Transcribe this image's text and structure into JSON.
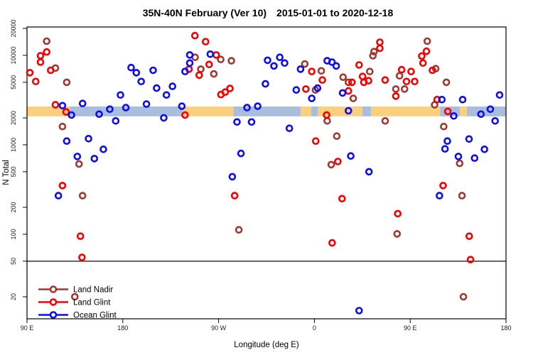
{
  "chart_data": {
    "type": "scatter",
    "title_left": "35N-40N February (Ver 10)",
    "title_right": "2015-01-01 to 2020-12-18",
    "xlabel": "Longitude (deg E)",
    "ylabel": "N Total",
    "x_axis": {
      "note": "axis position measured in degrees eastward from 90E; axis wraps 90E-180-90W-0-90E-180",
      "range": [
        0,
        450
      ],
      "ticks": [
        {
          "pos": 0,
          "label": "90 E"
        },
        {
          "pos": 90,
          "label": "180"
        },
        {
          "pos": 180,
          "label": "90 W"
        },
        {
          "pos": 270,
          "label": "0"
        },
        {
          "pos": 360,
          "label": "90 E"
        },
        {
          "pos": 450,
          "label": "180"
        }
      ]
    },
    "y_axis": {
      "scale": "log",
      "ticks": [
        20000,
        10000,
        5000,
        2000,
        1000,
        500,
        200,
        100,
        50,
        20
      ]
    },
    "threshold_line_value": 50,
    "coast_band": {
      "description": "land/ocean strip along longitude",
      "value_range": [
        2080,
        2680
      ],
      "land_color": "#FAD07E",
      "ocean_color": "#A9BEDC",
      "land_segments": [
        [
          0,
          40
        ],
        [
          146,
          194
        ],
        [
          257,
          267
        ],
        [
          273.3,
          315
        ],
        [
          323.3,
          388
        ],
        [
          406.7,
          413.3
        ]
      ],
      "ocean_segments": [
        [
          40,
          146
        ],
        [
          194,
          257
        ],
        [
          267,
          273.3
        ],
        [
          315,
          323.3
        ],
        [
          388,
          406.7
        ],
        [
          413.3,
          450
        ]
      ]
    },
    "series": [
      {
        "name": "Land Nadir",
        "color": "#A03A30",
        "points": [
          [
            18.5,
            14400
          ],
          [
            26.7,
            7200
          ],
          [
            37.3,
            5000
          ],
          [
            48.9,
            610
          ],
          [
            52.2,
            270
          ],
          [
            33.3,
            1600
          ],
          [
            158,
            9500
          ],
          [
            182,
            9000
          ],
          [
            163.3,
            7000
          ],
          [
            175.5,
            6200
          ],
          [
            192,
            8700
          ],
          [
            261,
            8000
          ],
          [
            276.5,
            6700
          ],
          [
            271,
            4100
          ],
          [
            297,
            5700
          ],
          [
            302,
            5000
          ],
          [
            306.5,
            3300
          ],
          [
            322,
            6600
          ],
          [
            325,
            9900
          ],
          [
            326,
            11000
          ],
          [
            346.5,
            4200
          ],
          [
            350,
            5900
          ],
          [
            354.7,
            4200
          ],
          [
            376,
            14400
          ],
          [
            384,
            7100
          ],
          [
            394,
            5000
          ],
          [
            44.9,
            20
          ],
          [
            199,
            112
          ],
          [
            347.7,
            101
          ],
          [
            410,
            20
          ],
          [
            383,
            2800
          ],
          [
            282,
            1850
          ],
          [
            336.5,
            1850
          ],
          [
            391.5,
            1600
          ],
          [
            291,
            1250
          ],
          [
            285.8,
            600
          ],
          [
            406.5,
            620
          ],
          [
            408.7,
            270
          ]
        ]
      },
      {
        "name": "Land Glint",
        "color": "#F80000",
        "points": [
          [
            12.7,
            9900
          ],
          [
            18.5,
            10900
          ],
          [
            12.7,
            8400
          ],
          [
            2.7,
            6400
          ],
          [
            22.2,
            6800
          ],
          [
            8.2,
            5100
          ],
          [
            26.7,
            2800
          ],
          [
            157.8,
            16600
          ],
          [
            167.8,
            14200
          ],
          [
            152.2,
            7000
          ],
          [
            177.8,
            10100
          ],
          [
            171.1,
            7900
          ],
          [
            161.8,
            6000
          ],
          [
            182.2,
            3640
          ],
          [
            186.2,
            3880
          ],
          [
            190.7,
            4260
          ],
          [
            36.7,
            2330
          ],
          [
            148.5,
            2150
          ],
          [
            33.3,
            350
          ],
          [
            195.1,
            270
          ],
          [
            267.5,
            6600
          ],
          [
            277.5,
            5300
          ],
          [
            262,
            4200
          ],
          [
            305.3,
            5000
          ],
          [
            302,
            4000
          ],
          [
            312,
            7800
          ],
          [
            315.3,
            5800
          ],
          [
            316.5,
            5000
          ],
          [
            320.9,
            5200
          ],
          [
            331.5,
            14000
          ],
          [
            331.5,
            12000
          ],
          [
            336.5,
            5300
          ],
          [
            346.5,
            3500
          ],
          [
            352,
            6900
          ],
          [
            356.5,
            5100
          ],
          [
            360.9,
            6600
          ],
          [
            364.2,
            5100
          ],
          [
            370.9,
            9800
          ],
          [
            372,
            8200
          ],
          [
            375.3,
            11100
          ],
          [
            380.9,
            6800
          ],
          [
            385.3,
            3200
          ],
          [
            50.2,
            95
          ],
          [
            51.7,
            55
          ],
          [
            286.7,
            80
          ],
          [
            348.3,
            170
          ],
          [
            415.5,
            95
          ],
          [
            416.7,
            52
          ],
          [
            281.5,
            2150
          ],
          [
            395.3,
            2360
          ],
          [
            271.3,
            1100
          ],
          [
            292,
            650
          ],
          [
            390.9,
            350
          ],
          [
            296,
            250
          ]
        ]
      },
      {
        "name": "Ocean Glint",
        "color": "#0D0DF0",
        "points": [
          [
            33.3,
            2740
          ],
          [
            52.2,
            2900
          ],
          [
            97.8,
            7300
          ],
          [
            102.7,
            6400
          ],
          [
            107.3,
            5100
          ],
          [
            118.5,
            6800
          ],
          [
            121.8,
            4300
          ],
          [
            131,
            3600
          ],
          [
            136.7,
            4500
          ],
          [
            87.8,
            3600
          ],
          [
            112.2,
            2850
          ],
          [
            145.5,
            2700
          ],
          [
            152.9,
            10100
          ],
          [
            152.9,
            8200
          ],
          [
            148.5,
            6600
          ],
          [
            172.2,
            10300
          ],
          [
            226,
            8800
          ],
          [
            224,
            4800
          ],
          [
            237.5,
            9500
          ],
          [
            242,
            8200
          ],
          [
            232,
            7600
          ],
          [
            257,
            7000
          ],
          [
            253,
            4100
          ],
          [
            273,
            4300
          ],
          [
            267.5,
            3300
          ],
          [
            282,
            8700
          ],
          [
            286.5,
            8400
          ],
          [
            290.5,
            7600
          ],
          [
            296.5,
            3800
          ],
          [
            389.8,
            3200
          ],
          [
            409.3,
            3200
          ],
          [
            444,
            3600
          ],
          [
            41.8,
            2150
          ],
          [
            67.8,
            2200
          ],
          [
            77.8,
            2500
          ],
          [
            83.3,
            1850
          ],
          [
            92.9,
            2600
          ],
          [
            128.5,
            2000
          ],
          [
            206.7,
            2600
          ],
          [
            216.7,
            2700
          ],
          [
            197.3,
            1800
          ],
          [
            211,
            1800
          ],
          [
            37.3,
            1100
          ],
          [
            57.8,
            1170
          ],
          [
            71.8,
            890
          ],
          [
            47.3,
            740
          ],
          [
            63.3,
            700
          ],
          [
            29.5,
            270
          ],
          [
            201,
            800
          ],
          [
            192.9,
            440
          ],
          [
            312,
            14
          ],
          [
            302,
            2400
          ],
          [
            400.9,
            2100
          ],
          [
            426.5,
            2200
          ],
          [
            435.3,
            2500
          ],
          [
            439.8,
            1850
          ],
          [
            246.5,
            1530
          ],
          [
            394.9,
            1100
          ],
          [
            415.3,
            1160
          ],
          [
            429.8,
            890
          ],
          [
            392.7,
            900
          ],
          [
            304.2,
            750
          ],
          [
            405.3,
            740
          ],
          [
            420.5,
            710
          ],
          [
            321.3,
            500
          ],
          [
            387.5,
            270
          ]
        ]
      }
    ],
    "legend_position": "bottom-left"
  }
}
